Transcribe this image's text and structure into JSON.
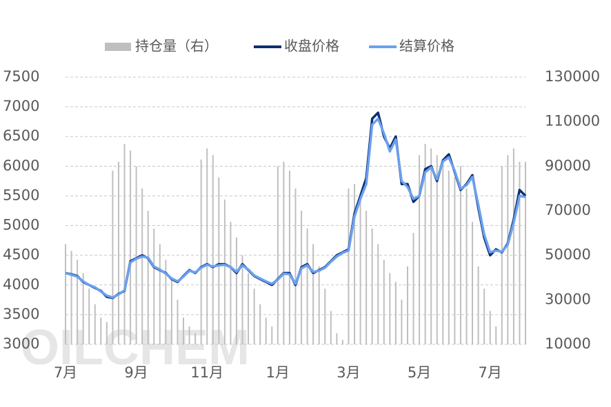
{
  "chart_data": {
    "type": "line",
    "watermark": "OILCHEM",
    "categories": [
      "7月",
      null,
      null,
      null,
      null,
      null,
      null,
      null,
      null,
      null,
      null,
      null,
      "9月",
      null,
      null,
      null,
      null,
      null,
      null,
      null,
      null,
      null,
      null,
      null,
      "11月",
      null,
      null,
      null,
      null,
      null,
      null,
      null,
      null,
      null,
      null,
      null,
      "1月",
      null,
      null,
      null,
      null,
      null,
      null,
      null,
      null,
      null,
      null,
      null,
      "3月",
      null,
      null,
      null,
      null,
      null,
      null,
      null,
      null,
      null,
      null,
      null,
      "5月",
      null,
      null,
      null,
      null,
      null,
      null,
      null,
      null,
      null,
      null,
      null,
      "7月",
      null,
      null,
      null,
      null,
      null,
      null
    ],
    "series": [
      {
        "name": "持仓量（右）",
        "type": "bar",
        "axis": "y2",
        "color": "#bfbfbf",
        "values": [
          55000,
          52000,
          48000,
          42000,
          35000,
          28000,
          22000,
          20000,
          88000,
          92000,
          100000,
          97000,
          90000,
          80000,
          70000,
          62000,
          55000,
          48000,
          40000,
          30000,
          22000,
          18000,
          15000,
          93000,
          98000,
          95000,
          85000,
          75000,
          65000,
          58000,
          50000,
          42000,
          35000,
          28000,
          22000,
          18000,
          90000,
          92000,
          88000,
          80000,
          70000,
          62000,
          55000,
          45000,
          35000,
          25000,
          15000,
          12000,
          80000,
          82000,
          78000,
          70000,
          62000,
          55000,
          48000,
          42000,
          38000,
          30000,
          45000,
          60000,
          95000,
          100000,
          98000,
          95000,
          92000,
          88000,
          85000,
          90000,
          80000,
          65000,
          45000,
          35000,
          25000,
          18000,
          90000,
          95000,
          98000,
          92000,
          92000
        ]
      },
      {
        "name": "收盘价格",
        "type": "line",
        "color": "#0d2f6e",
        "values": [
          4200,
          4180,
          4150,
          4050,
          4000,
          3950,
          3900,
          3800,
          3780,
          3850,
          3900,
          4400,
          4450,
          4500,
          4450,
          4300,
          4250,
          4200,
          4100,
          4050,
          4150,
          4250,
          4200,
          4300,
          4350,
          4300,
          4350,
          4350,
          4300,
          4200,
          4350,
          4250,
          4150,
          4100,
          4050,
          4000,
          4100,
          4200,
          4200,
          4000,
          4300,
          4350,
          4200,
          4250,
          4300,
          4400,
          4500,
          4550,
          4600,
          5200,
          5500,
          5800,
          6800,
          6900,
          6500,
          6300,
          6500,
          5700,
          5700,
          5400,
          5500,
          5950,
          6000,
          5750,
          6100,
          6200,
          5900,
          5600,
          5700,
          5850,
          5300,
          4800,
          4500,
          4600,
          4550,
          4700,
          5100,
          5600,
          5500
        ]
      },
      {
        "name": "结算价格",
        "type": "line",
        "color": "#6aa0f0",
        "values": [
          4200,
          4170,
          4140,
          4060,
          4000,
          3960,
          3890,
          3820,
          3790,
          3840,
          3910,
          4380,
          4440,
          4480,
          4460,
          4310,
          4260,
          4190,
          4110,
          4060,
          4140,
          4240,
          4210,
          4290,
          4340,
          4310,
          4330,
          4340,
          4300,
          4220,
          4330,
          4260,
          4160,
          4110,
          4060,
          4020,
          4090,
          4190,
          4180,
          4020,
          4280,
          4330,
          4220,
          4240,
          4290,
          4390,
          4480,
          4540,
          4580,
          5150,
          5450,
          5700,
          6700,
          6800,
          6550,
          6250,
          6450,
          5750,
          5650,
          5450,
          5500,
          5900,
          5980,
          5780,
          6080,
          6150,
          5920,
          5620,
          5680,
          5820,
          5350,
          4850,
          4550,
          4580,
          4560,
          4680,
          5050,
          5500,
          5480
        ]
      }
    ],
    "ylim": [
      3000,
      7500
    ],
    "yticks": [
      3000,
      3500,
      4000,
      4500,
      5000,
      5500,
      6000,
      6500,
      7000,
      7500
    ],
    "y2lim": [
      10000,
      130000
    ],
    "y2ticks": [
      10000,
      30000,
      50000,
      70000,
      90000,
      110000,
      130000
    ],
    "grid": true,
    "legend": "top"
  }
}
